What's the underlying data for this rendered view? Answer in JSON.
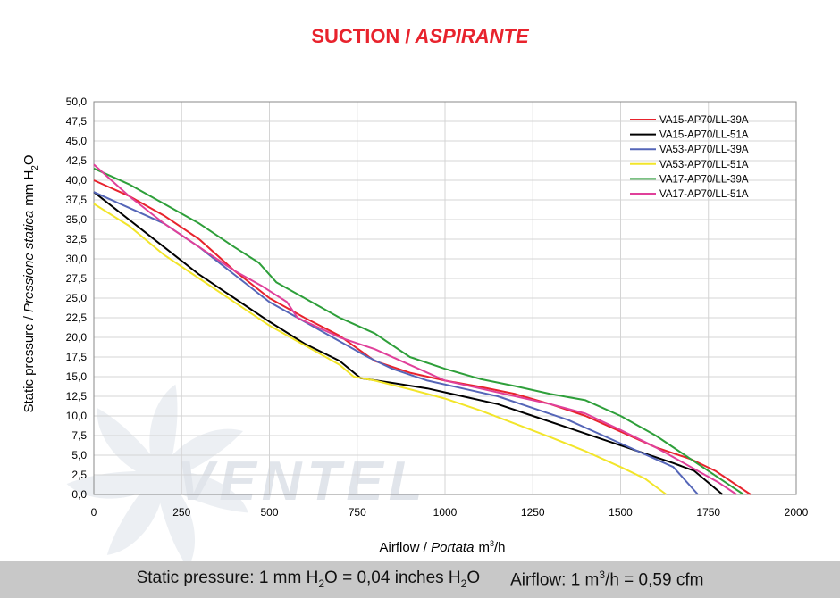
{
  "chart_data": {
    "type": "line",
    "title_main": "SUCTION /",
    "title_italic": "ASPIRANTE",
    "xlabel": {
      "main": "Airflow",
      "sep": " / ",
      "italic": "Portata",
      "unit_pre": "m",
      "unit_sup": "3",
      "unit_post": "/h"
    },
    "ylabel": {
      "main": "Static pressure",
      "sep": " / ",
      "italic": "Pressione statica",
      "unit_pre": "mm  H",
      "unit_sub": "2",
      "unit_post": "O"
    },
    "xlim": [
      0,
      2000
    ],
    "ylim": [
      0,
      50
    ],
    "xticks": [
      "0",
      "250",
      "500",
      "750",
      "1000",
      "1250",
      "1500",
      "1750",
      "2000"
    ],
    "yticks": [
      "0,0",
      "2,5",
      "5,0",
      "7,5",
      "10,0",
      "12,5",
      "15,0",
      "17,5",
      "20,0",
      "22,5",
      "25,0",
      "27,5",
      "30,0",
      "32,5",
      "35,0",
      "37,5",
      "40,0",
      "42,5",
      "45,0",
      "47,5",
      "50,0"
    ],
    "grid": true,
    "legend_position": "top-right",
    "watermark": "VENTEL",
    "series": [
      {
        "name": "VA15-AP70/LL-39A",
        "color": "#e8232d",
        "points": [
          [
            0,
            40
          ],
          [
            100,
            38
          ],
          [
            200,
            35.5
          ],
          [
            300,
            32.5
          ],
          [
            400,
            28.5
          ],
          [
            500,
            25
          ],
          [
            600,
            22.5
          ],
          [
            700,
            20.2
          ],
          [
            800,
            17
          ],
          [
            900,
            15.5
          ],
          [
            1000,
            14.5
          ],
          [
            1100,
            13.7
          ],
          [
            1200,
            12.8
          ],
          [
            1300,
            11.5
          ],
          [
            1400,
            10
          ],
          [
            1500,
            8
          ],
          [
            1600,
            6
          ],
          [
            1700,
            4.5
          ],
          [
            1770,
            3
          ],
          [
            1870,
            0
          ]
        ]
      },
      {
        "name": "VA15-AP70/LL-51A",
        "color": "#000000",
        "points": [
          [
            0,
            38.5
          ],
          [
            100,
            35
          ],
          [
            200,
            31.5
          ],
          [
            300,
            28
          ],
          [
            400,
            25
          ],
          [
            500,
            22
          ],
          [
            600,
            19.2
          ],
          [
            700,
            17
          ],
          [
            760,
            14.8
          ],
          [
            850,
            14.2
          ],
          [
            950,
            13.5
          ],
          [
            1050,
            12.5
          ],
          [
            1150,
            11.5
          ],
          [
            1250,
            10
          ],
          [
            1350,
            8.5
          ],
          [
            1450,
            7
          ],
          [
            1550,
            5.5
          ],
          [
            1650,
            4
          ],
          [
            1710,
            3
          ],
          [
            1790,
            0
          ]
        ]
      },
      {
        "name": "VA53-AP70/LL-39A",
        "color": "#5566b8",
        "points": [
          [
            0,
            38.5
          ],
          [
            100,
            36.5
          ],
          [
            200,
            34.5
          ],
          [
            300,
            31.5
          ],
          [
            400,
            28
          ],
          [
            500,
            24.5
          ],
          [
            600,
            22
          ],
          [
            700,
            19.5
          ],
          [
            780,
            17.5
          ],
          [
            850,
            16
          ],
          [
            950,
            14.5
          ],
          [
            1050,
            13.5
          ],
          [
            1150,
            12.5
          ],
          [
            1250,
            11
          ],
          [
            1350,
            9.5
          ],
          [
            1450,
            7.5
          ],
          [
            1550,
            5.5
          ],
          [
            1650,
            3.5
          ],
          [
            1720,
            0
          ]
        ]
      },
      {
        "name": "VA53-AP70/LL-51A",
        "color": "#f2e52a",
        "points": [
          [
            0,
            37
          ],
          [
            100,
            34.2
          ],
          [
            200,
            30.5
          ],
          [
            300,
            27.5
          ],
          [
            400,
            24.5
          ],
          [
            500,
            21.5
          ],
          [
            600,
            19
          ],
          [
            700,
            16.5
          ],
          [
            740,
            15
          ],
          [
            800,
            14.5
          ],
          [
            900,
            13.4
          ],
          [
            1000,
            12.2
          ],
          [
            1100,
            10.7
          ],
          [
            1200,
            9
          ],
          [
            1300,
            7.3
          ],
          [
            1400,
            5.5
          ],
          [
            1500,
            3.5
          ],
          [
            1570,
            2
          ],
          [
            1630,
            0
          ]
        ]
      },
      {
        "name": "VA17-AP70/LL-39A",
        "color": "#2e9f3a",
        "points": [
          [
            0,
            41.5
          ],
          [
            100,
            39.5
          ],
          [
            200,
            37
          ],
          [
            300,
            34.5
          ],
          [
            400,
            31.5
          ],
          [
            470,
            29.5
          ],
          [
            520,
            27
          ],
          [
            600,
            25
          ],
          [
            700,
            22.5
          ],
          [
            800,
            20.5
          ],
          [
            900,
            17.5
          ],
          [
            1000,
            16
          ],
          [
            1100,
            14.7
          ],
          [
            1200,
            13.8
          ],
          [
            1300,
            12.8
          ],
          [
            1400,
            12
          ],
          [
            1500,
            10
          ],
          [
            1600,
            7.5
          ],
          [
            1700,
            4.5
          ],
          [
            1800,
            1.5
          ],
          [
            1850,
            0
          ]
        ]
      },
      {
        "name": "VA17-AP70/LL-51A",
        "color": "#e0409a",
        "points": [
          [
            0,
            42
          ],
          [
            100,
            38
          ],
          [
            200,
            34.5
          ],
          [
            300,
            31.5
          ],
          [
            400,
            28.5
          ],
          [
            480,
            26.5
          ],
          [
            550,
            24.5
          ],
          [
            580,
            22.5
          ],
          [
            700,
            20
          ],
          [
            800,
            18.5
          ],
          [
            900,
            16.5
          ],
          [
            1000,
            14.5
          ],
          [
            1100,
            13.5
          ],
          [
            1200,
            12.5
          ],
          [
            1300,
            11.5
          ],
          [
            1400,
            10.3
          ],
          [
            1500,
            8.2
          ],
          [
            1600,
            6
          ],
          [
            1700,
            3.5
          ],
          [
            1780,
            1.5
          ],
          [
            1830,
            0
          ]
        ]
      }
    ]
  },
  "footer": {
    "pressure": {
      "pre": "Static pressure: 1 mm H",
      "sub1": "2",
      "mid": "O = 0,04 inches H",
      "sub2": "2",
      "post": "O"
    },
    "airflow": {
      "pre": "Airflow: 1 m",
      "sup": "3",
      "post": "/h = 0,59 cfm"
    }
  }
}
